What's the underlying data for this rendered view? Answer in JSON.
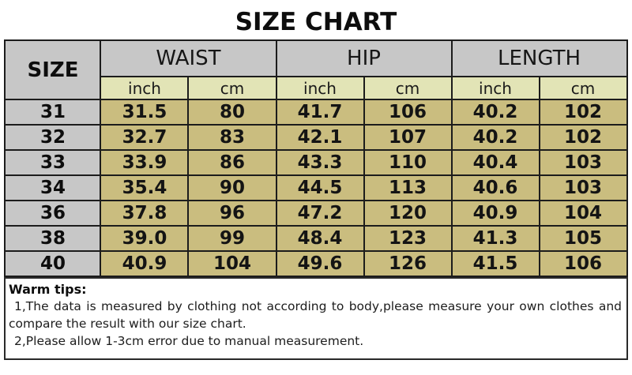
{
  "title": "SIZE CHART",
  "chart_data": {
    "type": "table",
    "title": "SIZE CHART",
    "size_header": "SIZE",
    "column_groups": [
      "WAIST",
      "HIP",
      "LENGTH"
    ],
    "unit_headers": [
      "inch",
      "cm",
      "inch",
      "cm",
      "inch",
      "cm"
    ],
    "rows": [
      {
        "size": "31",
        "values": [
          "31.5",
          "80",
          "41.7",
          "106",
          "40.2",
          "102"
        ]
      },
      {
        "size": "32",
        "values": [
          "32.7",
          "83",
          "42.1",
          "107",
          "40.2",
          "102"
        ]
      },
      {
        "size": "33",
        "values": [
          "33.9",
          "86",
          "43.3",
          "110",
          "40.4",
          "103"
        ]
      },
      {
        "size": "34",
        "values": [
          "35.4",
          "90",
          "44.5",
          "113",
          "40.6",
          "103"
        ]
      },
      {
        "size": "36",
        "values": [
          "37.8",
          "96",
          "47.2",
          "120",
          "40.9",
          "104"
        ]
      },
      {
        "size": "38",
        "values": [
          "39.0",
          "99",
          "48.4",
          "123",
          "41.3",
          "105"
        ]
      },
      {
        "size": "40",
        "values": [
          "40.9",
          "104",
          "49.6",
          "126",
          "41.5",
          "106"
        ]
      }
    ]
  },
  "warm_tips": {
    "heading": "Warm tips:",
    "tip1": "1,The data is measured by clothing not according to body,please measure your own clothes and compare the result with our size chart.",
    "tip2": "2,Please allow 1-3cm error due to manual measurement."
  },
  "colors": {
    "header_bg": "#c7c7c7",
    "unit_row_bg": "#e2e4b6",
    "value_cell_bg": "#cabd7f",
    "grid_border": "#1c1c1c"
  }
}
